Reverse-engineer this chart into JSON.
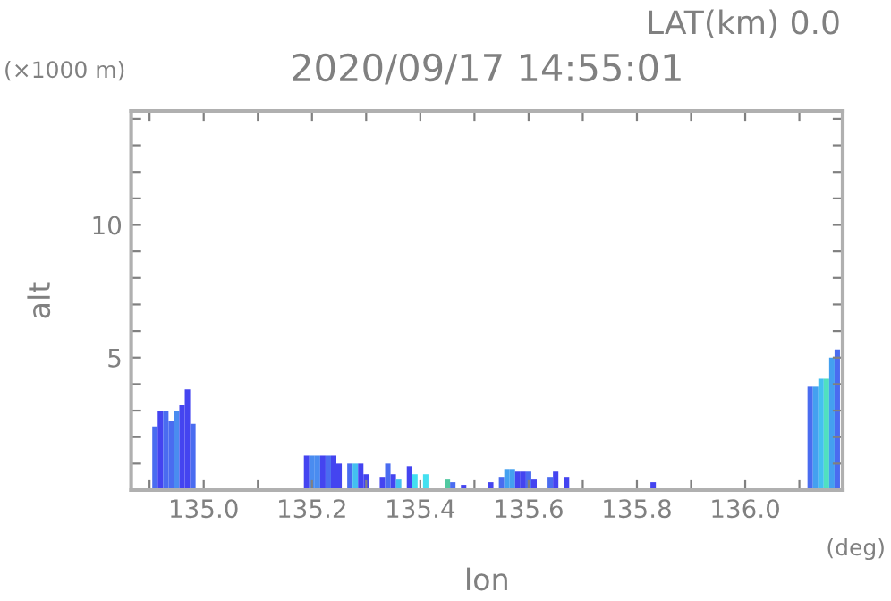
{
  "chart_data": {
    "type": "bar",
    "title": "2020/09/17 14:55:01",
    "xlabel": "lon",
    "ylabel": "alt",
    "annotations": [
      "LAT(km) 0.0",
      "(×1000 m)",
      "(deg)"
    ],
    "x": [
      134.91,
      134.92,
      134.93,
      134.94,
      134.95,
      134.96,
      134.97,
      134.98,
      135.19,
      135.2,
      135.21,
      135.22,
      135.23,
      135.24,
      135.25,
      135.27,
      135.28,
      135.29,
      135.3,
      135.33,
      135.34,
      135.35,
      135.36,
      135.38,
      135.39,
      135.41,
      135.45,
      135.46,
      135.48,
      135.53,
      135.55,
      135.56,
      135.57,
      135.58,
      135.59,
      135.6,
      135.61,
      135.64,
      135.65,
      135.67,
      135.83,
      136.12,
      136.13,
      136.14,
      136.15,
      136.16,
      136.17
    ],
    "values": [
      2.4,
      3.0,
      3.0,
      2.6,
      3.0,
      3.2,
      3.8,
      2.5,
      1.3,
      1.3,
      1.3,
      1.3,
      1.3,
      1.3,
      1.0,
      1.0,
      1.0,
      1.0,
      0.6,
      0.5,
      1.0,
      0.6,
      0.4,
      0.9,
      0.6,
      0.6,
      0.4,
      0.3,
      0.2,
      0.3,
      0.5,
      0.8,
      0.8,
      0.7,
      0.7,
      0.7,
      0.4,
      0.5,
      0.7,
      0.5,
      0.3,
      3.9,
      3.9,
      4.2,
      4.2,
      5.0,
      5.3
    ],
    "colors": [
      "#4a6cf0",
      "#4444f0",
      "#4a6cf0",
      "#4a6cf0",
      "#4a8cf0",
      "#4444f0",
      "#4444f0",
      "#4a6cf0",
      "#4444f0",
      "#4a8cf0",
      "#4a8cf0",
      "#4444f0",
      "#4a6cf0",
      "#4444f0",
      "#4444f0",
      "#4a6cf0",
      "#44c0f0",
      "#4444f0",
      "#4444f0",
      "#4444f0",
      "#4a6cf0",
      "#4444f0",
      "#44c0f0",
      "#4444f0",
      "#44e0f0",
      "#44e0f0",
      "#50c8a0",
      "#4a6cf0",
      "#4444f0",
      "#4444f0",
      "#4a6cf0",
      "#44a0f0",
      "#44a0f0",
      "#4444f0",
      "#4444f0",
      "#4a6cf0",
      "#4444f0",
      "#4a6cf0",
      "#4444f0",
      "#4444f0",
      "#4444f0",
      "#4a6cf0",
      "#44a0f0",
      "#44c0f0",
      "#50e0c0",
      "#44a0f0",
      "#4a6cf0"
    ],
    "xlim": [
      134.866,
      136.18
    ],
    "xticks": [
      {
        "value": 134.9,
        "label": null
      },
      {
        "value": 135.0,
        "label": "135.0"
      },
      {
        "value": 135.1,
        "label": null
      },
      135.2,
      {
        "value": 135.3,
        "label": null
      },
      135.4,
      {
        "value": 135.5,
        "label": null
      },
      135.6,
      {
        "value": 135.7,
        "label": null
      },
      135.8,
      {
        "value": 135.9,
        "label": null
      },
      {
        "value": 136.0,
        "label": "136.0"
      },
      {
        "value": 136.1,
        "label": null
      }
    ],
    "ylim": [
      0,
      14.3
    ],
    "yticks": [
      {
        "value": 1,
        "label": null
      },
      {
        "value": 2,
        "label": null
      },
      {
        "value": 3,
        "label": null
      },
      {
        "value": 4,
        "label": null
      },
      5,
      {
        "value": 6,
        "label": null
      },
      {
        "value": 7,
        "label": null
      },
      {
        "value": 8,
        "label": null
      },
      {
        "value": 9,
        "label": null
      },
      10,
      {
        "value": 11,
        "label": null
      },
      {
        "value": 12,
        "label": null
      },
      {
        "value": 13,
        "label": null
      },
      {
        "value": 14,
        "label": null
      }
    ],
    "grid": false,
    "legend": false
  }
}
